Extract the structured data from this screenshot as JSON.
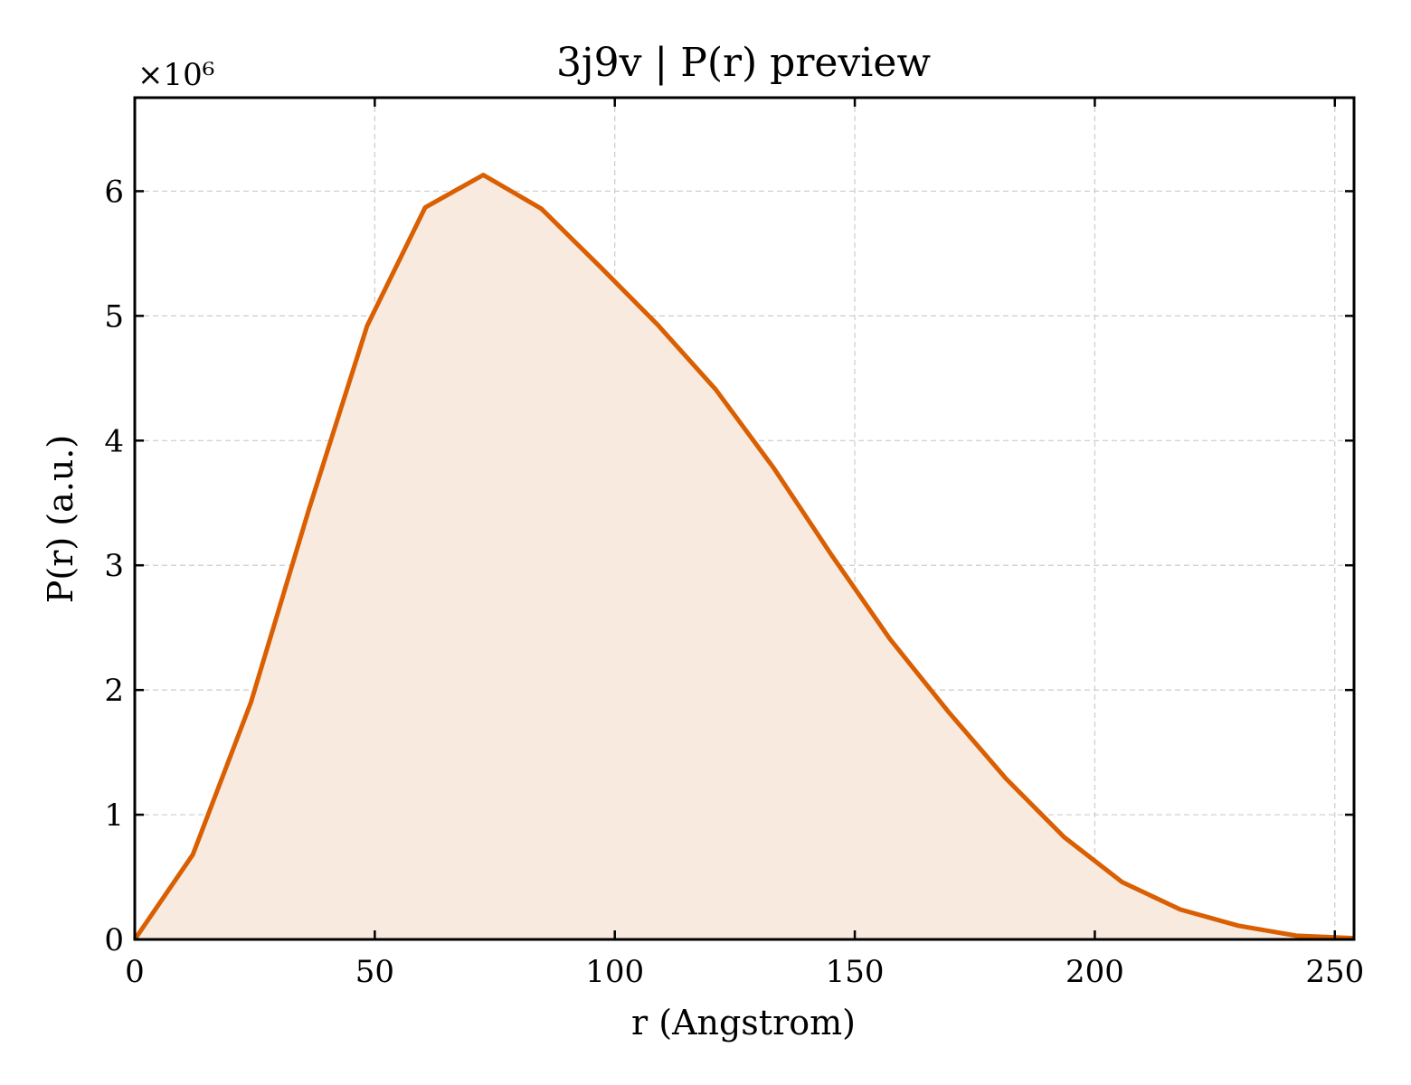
{
  "chart_data": {
    "type": "area",
    "title": "3j9v | P(r) preview",
    "xlabel": "r (Angstrom)",
    "ylabel": "P(r) (a.u.)",
    "y_offset_label": "×10⁶",
    "xlim": [
      0,
      254
    ],
    "ylim": [
      0,
      6.75
    ],
    "x_ticks": [
      0,
      50,
      100,
      150,
      200,
      250
    ],
    "y_ticks": [
      0,
      1,
      2,
      3,
      4,
      5,
      6
    ],
    "grid": true,
    "line_color": "#d95f02",
    "fill_color": "#f9eadf",
    "series": [
      {
        "x": [
          0,
          12.1,
          24.2,
          36.3,
          48.4,
          60.5,
          72.6,
          84.7,
          96.8,
          108.9,
          121.0,
          133.1,
          145.2,
          157.3,
          169.4,
          181.5,
          193.6,
          205.7,
          217.8,
          229.9,
          242.0,
          254.0
        ],
        "y": [
          0.0,
          0.68,
          1.9,
          3.45,
          4.92,
          5.87,
          6.13,
          5.86,
          5.4,
          4.93,
          4.41,
          3.78,
          3.08,
          2.41,
          1.83,
          1.29,
          0.82,
          0.46,
          0.24,
          0.11,
          0.03,
          0.01
        ]
      }
    ]
  }
}
